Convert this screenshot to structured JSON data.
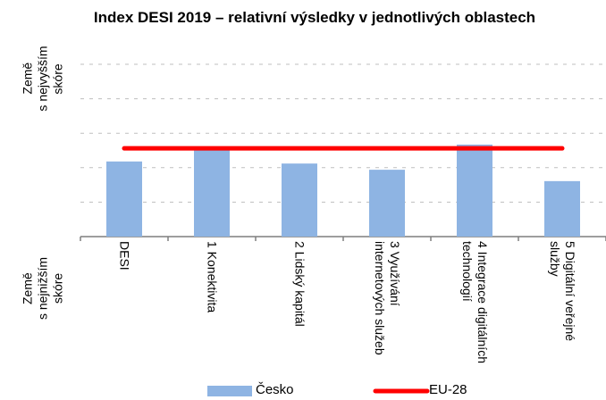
{
  "chart_data": {
    "type": "bar",
    "title": "Index DESI 2019 – relativní výsledky v jednotlivých oblastech",
    "y_top_label": [
      "Země",
      "s nejvyšším",
      "skóre"
    ],
    "y_bottom_label": [
      "Země",
      "s nejnižším",
      "skóre"
    ],
    "categories": [
      "DESI",
      "1 Konektivita",
      "2 Lidský kapitál",
      "3 Využívání internetových služeb",
      "4 Integrace digitálních technologií",
      "5 Digitální veřejné služby"
    ],
    "series": [
      {
        "name": "Česko",
        "type": "bar",
        "color": "#8eb4e3",
        "values": [
          2.18,
          2.51,
          2.12,
          1.94,
          2.67,
          1.61
        ]
      },
      {
        "name": "EU-28",
        "type": "line",
        "color": "#ff0000",
        "values": [
          2.56,
          2.56,
          2.56,
          2.56,
          2.56,
          2.56
        ]
      }
    ],
    "ylim": [
      0,
      5
    ],
    "yticks": [
      0,
      1,
      2,
      3,
      4,
      5
    ],
    "grid": true
  }
}
